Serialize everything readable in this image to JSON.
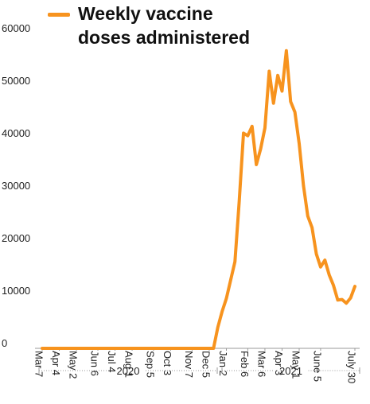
{
  "chart_data": {
    "type": "line",
    "categories": [
      "Mar 7",
      null,
      null,
      null,
      "Apr 4",
      null,
      null,
      null,
      "May 2",
      null,
      null,
      null,
      null,
      "Jun 6",
      null,
      null,
      null,
      "Jul 4",
      null,
      null,
      null,
      "Aug 1",
      null,
      null,
      null,
      null,
      "Sep 5",
      null,
      null,
      null,
      "Oct 3",
      null,
      null,
      null,
      null,
      "Nov 7",
      null,
      null,
      null,
      "Dec 5",
      null,
      null,
      null,
      "Jan 2",
      null,
      null,
      null,
      null,
      "Feb 6",
      null,
      null,
      null,
      "Mar 6",
      null,
      null,
      null,
      "Apr 3",
      null,
      null,
      null,
      "May 1",
      null,
      null,
      null,
      null,
      "June 5",
      null,
      null,
      null,
      null,
      null,
      null,
      null,
      "July 30"
    ],
    "series": [
      {
        "name": "Weekly vaccine doses administered",
        "color": "#f7931e",
        "values": [
          0,
          0,
          0,
          0,
          0,
          0,
          0,
          0,
          0,
          0,
          0,
          0,
          0,
          0,
          0,
          0,
          0,
          0,
          0,
          0,
          0,
          0,
          0,
          0,
          0,
          0,
          0,
          0,
          0,
          0,
          0,
          0,
          0,
          0,
          0,
          0,
          0,
          0,
          0,
          0,
          0,
          4000,
          7000,
          9500,
          13000,
          16500,
          28000,
          41000,
          40500,
          42300,
          35000,
          38000,
          42000,
          52800,
          46700,
          52000,
          49000,
          56700,
          47000,
          45000,
          39000,
          31000,
          25200,
          23000,
          18000,
          15500,
          16800,
          14000,
          12000,
          9200,
          9300,
          8600,
          9600,
          11800
        ]
      }
    ],
    "ylim": [
      0,
      60000
    ],
    "yticks": [
      0,
      10000,
      20000,
      30000,
      40000,
      50000,
      60000
    ],
    "year_labels": [
      "2020",
      "2021"
    ],
    "grid": false
  }
}
